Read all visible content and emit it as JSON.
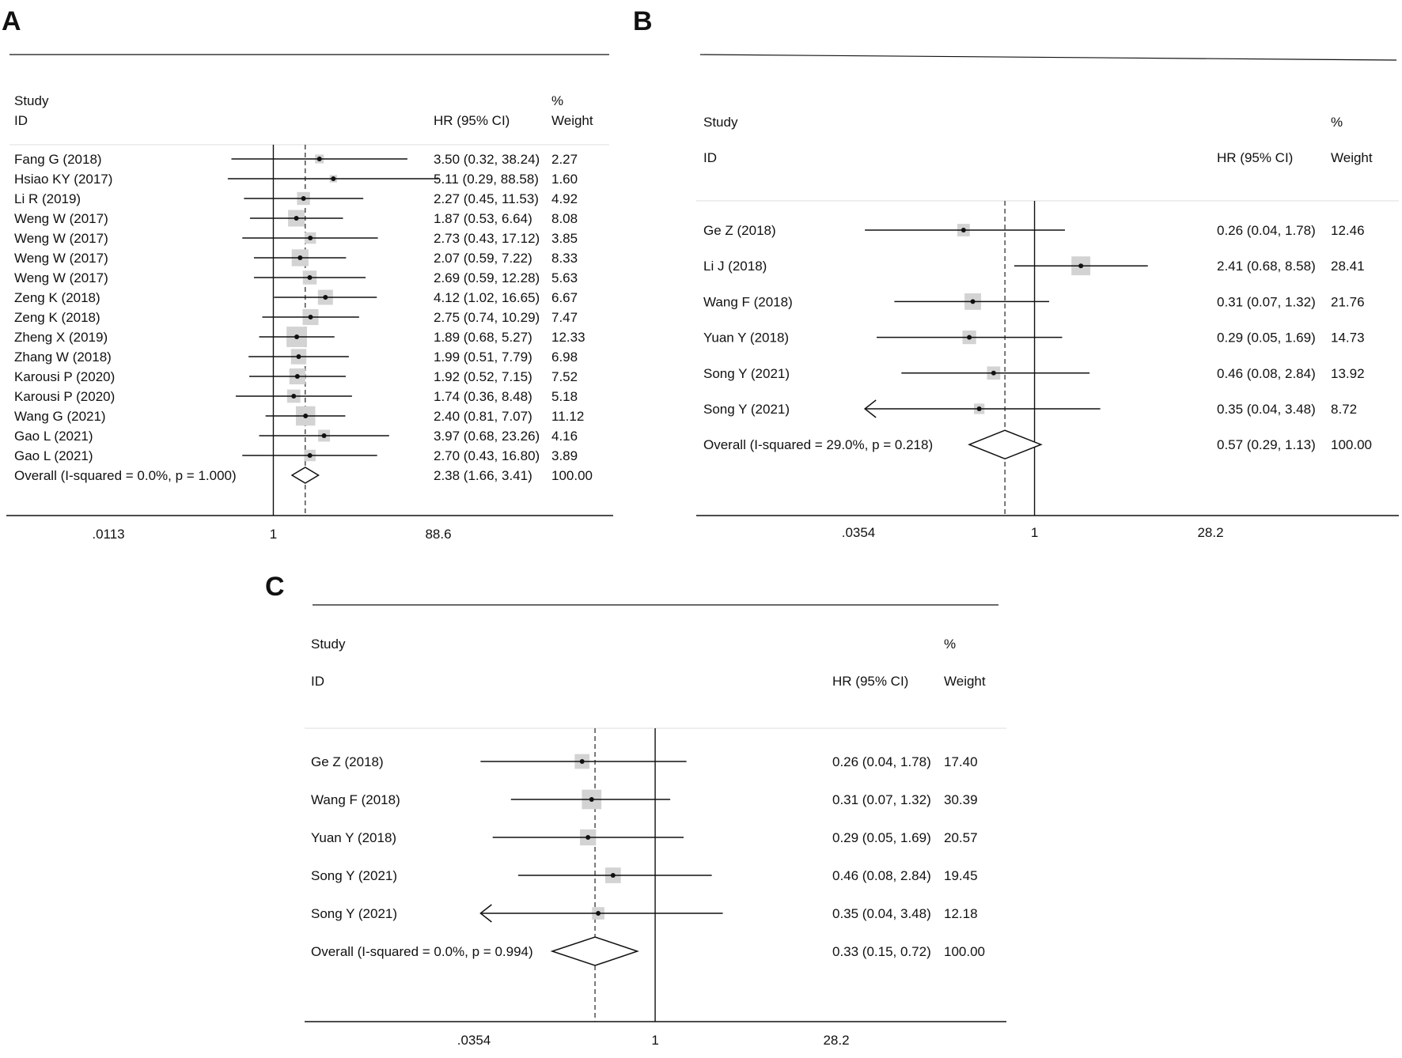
{
  "chart_data": [
    {
      "panel": "A",
      "type": "forest",
      "header": {
        "col1_top": "Study",
        "col1_bottom": "ID",
        "col2": "HR (95% CI)",
        "col3_top": "%",
        "col3_bottom": "Weight"
      },
      "xticks": [
        ".0113",
        "1",
        "88.6"
      ],
      "xlim": [
        0.0113,
        88.6
      ],
      "scale": "log",
      "studies": [
        {
          "id": "Fang G (2018)",
          "hr": 3.5,
          "lo": 0.32,
          "hi": 38.24,
          "ci": "3.50 (0.32, 38.24)",
          "weight": "2.27"
        },
        {
          "id": "Hsiao KY (2017)",
          "hr": 5.11,
          "lo": 0.29,
          "hi": 88.58,
          "ci": "5.11 (0.29, 88.58)",
          "weight": "1.60"
        },
        {
          "id": "Li R (2019)",
          "hr": 2.27,
          "lo": 0.45,
          "hi": 11.53,
          "ci": "2.27 (0.45, 11.53)",
          "weight": "4.92"
        },
        {
          "id": "Weng W (2017)",
          "hr": 1.87,
          "lo": 0.53,
          "hi": 6.64,
          "ci": "1.87 (0.53, 6.64)",
          "weight": "8.08"
        },
        {
          "id": "Weng W (2017)",
          "hr": 2.73,
          "lo": 0.43,
          "hi": 17.12,
          "ci": "2.73 (0.43, 17.12)",
          "weight": "3.85"
        },
        {
          "id": "Weng W (2017)",
          "hr": 2.07,
          "lo": 0.59,
          "hi": 7.22,
          "ci": "2.07 (0.59, 7.22)",
          "weight": "8.33"
        },
        {
          "id": "Weng W (2017)",
          "hr": 2.69,
          "lo": 0.59,
          "hi": 12.28,
          "ci": "2.69 (0.59, 12.28)",
          "weight": "5.63"
        },
        {
          "id": "Zeng K (2018)",
          "hr": 4.12,
          "lo": 1.02,
          "hi": 16.65,
          "ci": "4.12 (1.02, 16.65)",
          "weight": "6.67"
        },
        {
          "id": "Zeng K (2018)",
          "hr": 2.75,
          "lo": 0.74,
          "hi": 10.29,
          "ci": "2.75 (0.74, 10.29)",
          "weight": "7.47"
        },
        {
          "id": "Zheng X (2019)",
          "hr": 1.89,
          "lo": 0.68,
          "hi": 5.27,
          "ci": "1.89 (0.68, 5.27)",
          "weight": "12.33"
        },
        {
          "id": "Zhang W (2018)",
          "hr": 1.99,
          "lo": 0.51,
          "hi": 7.79,
          "ci": "1.99 (0.51, 7.79)",
          "weight": "6.98"
        },
        {
          "id": "Karousi P (2020)",
          "hr": 1.92,
          "lo": 0.52,
          "hi": 7.15,
          "ci": "1.92 (0.52, 7.15)",
          "weight": "7.52"
        },
        {
          "id": "Karousi P (2020)",
          "hr": 1.74,
          "lo": 0.36,
          "hi": 8.48,
          "ci": "1.74 (0.36, 8.48)",
          "weight": "5.18"
        },
        {
          "id": "Wang G (2021)",
          "hr": 2.4,
          "lo": 0.81,
          "hi": 7.07,
          "ci": "2.40 (0.81, 7.07)",
          "weight": "11.12"
        },
        {
          "id": "Gao L (2021)",
          "hr": 3.97,
          "lo": 0.68,
          "hi": 23.26,
          "ci": "3.97 (0.68, 23.26)",
          "weight": "4.16"
        },
        {
          "id": "Gao L (2021)",
          "hr": 2.7,
          "lo": 0.43,
          "hi": 16.8,
          "ci": "2.70 (0.43, 16.80)",
          "weight": "3.89"
        }
      ],
      "overall": {
        "label": "Overall  (I-squared = 0.0%, p = 1.000)",
        "hr": 2.38,
        "lo": 1.66,
        "hi": 3.41,
        "ci": "2.38 (1.66, 3.41)",
        "weight": "100.00"
      }
    },
    {
      "panel": "B",
      "type": "forest",
      "header": {
        "col1_top": "Study",
        "col1_bottom": "ID",
        "col2": "HR (95% CI)",
        "col3_top": "%",
        "col3_bottom": "Weight"
      },
      "xticks": [
        ".0354",
        "1",
        "28.2"
      ],
      "xlim": [
        0.0354,
        28.2
      ],
      "scale": "log",
      "studies": [
        {
          "id": "Ge Z (2018)",
          "hr": 0.26,
          "lo": 0.04,
          "hi": 1.78,
          "ci": "0.26 (0.04, 1.78)",
          "weight": "12.46"
        },
        {
          "id": "Li J (2018)",
          "hr": 2.41,
          "lo": 0.68,
          "hi": 8.58,
          "ci": "2.41 (0.68, 8.58)",
          "weight": "28.41"
        },
        {
          "id": "Wang F (2018)",
          "hr": 0.31,
          "lo": 0.07,
          "hi": 1.32,
          "ci": "0.31 (0.07, 1.32)",
          "weight": "21.76"
        },
        {
          "id": "Yuan Y (2018)",
          "hr": 0.29,
          "lo": 0.05,
          "hi": 1.69,
          "ci": "0.29 (0.05, 1.69)",
          "weight": "14.73"
        },
        {
          "id": "Song Y (2021)",
          "hr": 0.46,
          "lo": 0.08,
          "hi": 2.84,
          "ci": "0.46 (0.08, 2.84)",
          "weight": "13.92"
        },
        {
          "id": "Song Y (2021)",
          "hr": 0.35,
          "lo": 0.04,
          "hi": 3.48,
          "ci": "0.35 (0.04, 3.48)",
          "weight": "8.72",
          "arrow_left": true
        }
      ],
      "overall": {
        "label": "Overall  (I-squared = 29.0%, p = 0.218)",
        "hr": 0.57,
        "lo": 0.29,
        "hi": 1.13,
        "ci": "0.57 (0.29, 1.13)",
        "weight": "100.00"
      }
    },
    {
      "panel": "C",
      "type": "forest",
      "header": {
        "col1_top": "Study",
        "col1_bottom": "ID",
        "col2": "HR (95% CI)",
        "col3_top": "%",
        "col3_bottom": "Weight"
      },
      "xticks": [
        ".0354",
        "1",
        "28.2"
      ],
      "xlim": [
        0.0354,
        28.2
      ],
      "scale": "log",
      "studies": [
        {
          "id": "Ge Z (2018)",
          "hr": 0.26,
          "lo": 0.04,
          "hi": 1.78,
          "ci": "0.26 (0.04, 1.78)",
          "weight": "17.40"
        },
        {
          "id": "Wang F (2018)",
          "hr": 0.31,
          "lo": 0.07,
          "hi": 1.32,
          "ci": "0.31 (0.07, 1.32)",
          "weight": "30.39"
        },
        {
          "id": "Yuan Y (2018)",
          "hr": 0.29,
          "lo": 0.05,
          "hi": 1.69,
          "ci": "0.29 (0.05, 1.69)",
          "weight": "20.57"
        },
        {
          "id": "Song Y (2021)",
          "hr": 0.46,
          "lo": 0.08,
          "hi": 2.84,
          "ci": "0.46 (0.08, 2.84)",
          "weight": "19.45"
        },
        {
          "id": "Song Y (2021)",
          "hr": 0.35,
          "lo": 0.04,
          "hi": 3.48,
          "ci": "0.35 (0.04, 3.48)",
          "weight": "12.18",
          "arrow_left": true
        }
      ],
      "overall": {
        "label": "Overall  (I-squared = 0.0%, p = 0.994)",
        "hr": 0.33,
        "lo": 0.15,
        "hi": 0.72,
        "ci": "0.33 (0.15, 0.72)",
        "weight": "100.00"
      }
    }
  ]
}
